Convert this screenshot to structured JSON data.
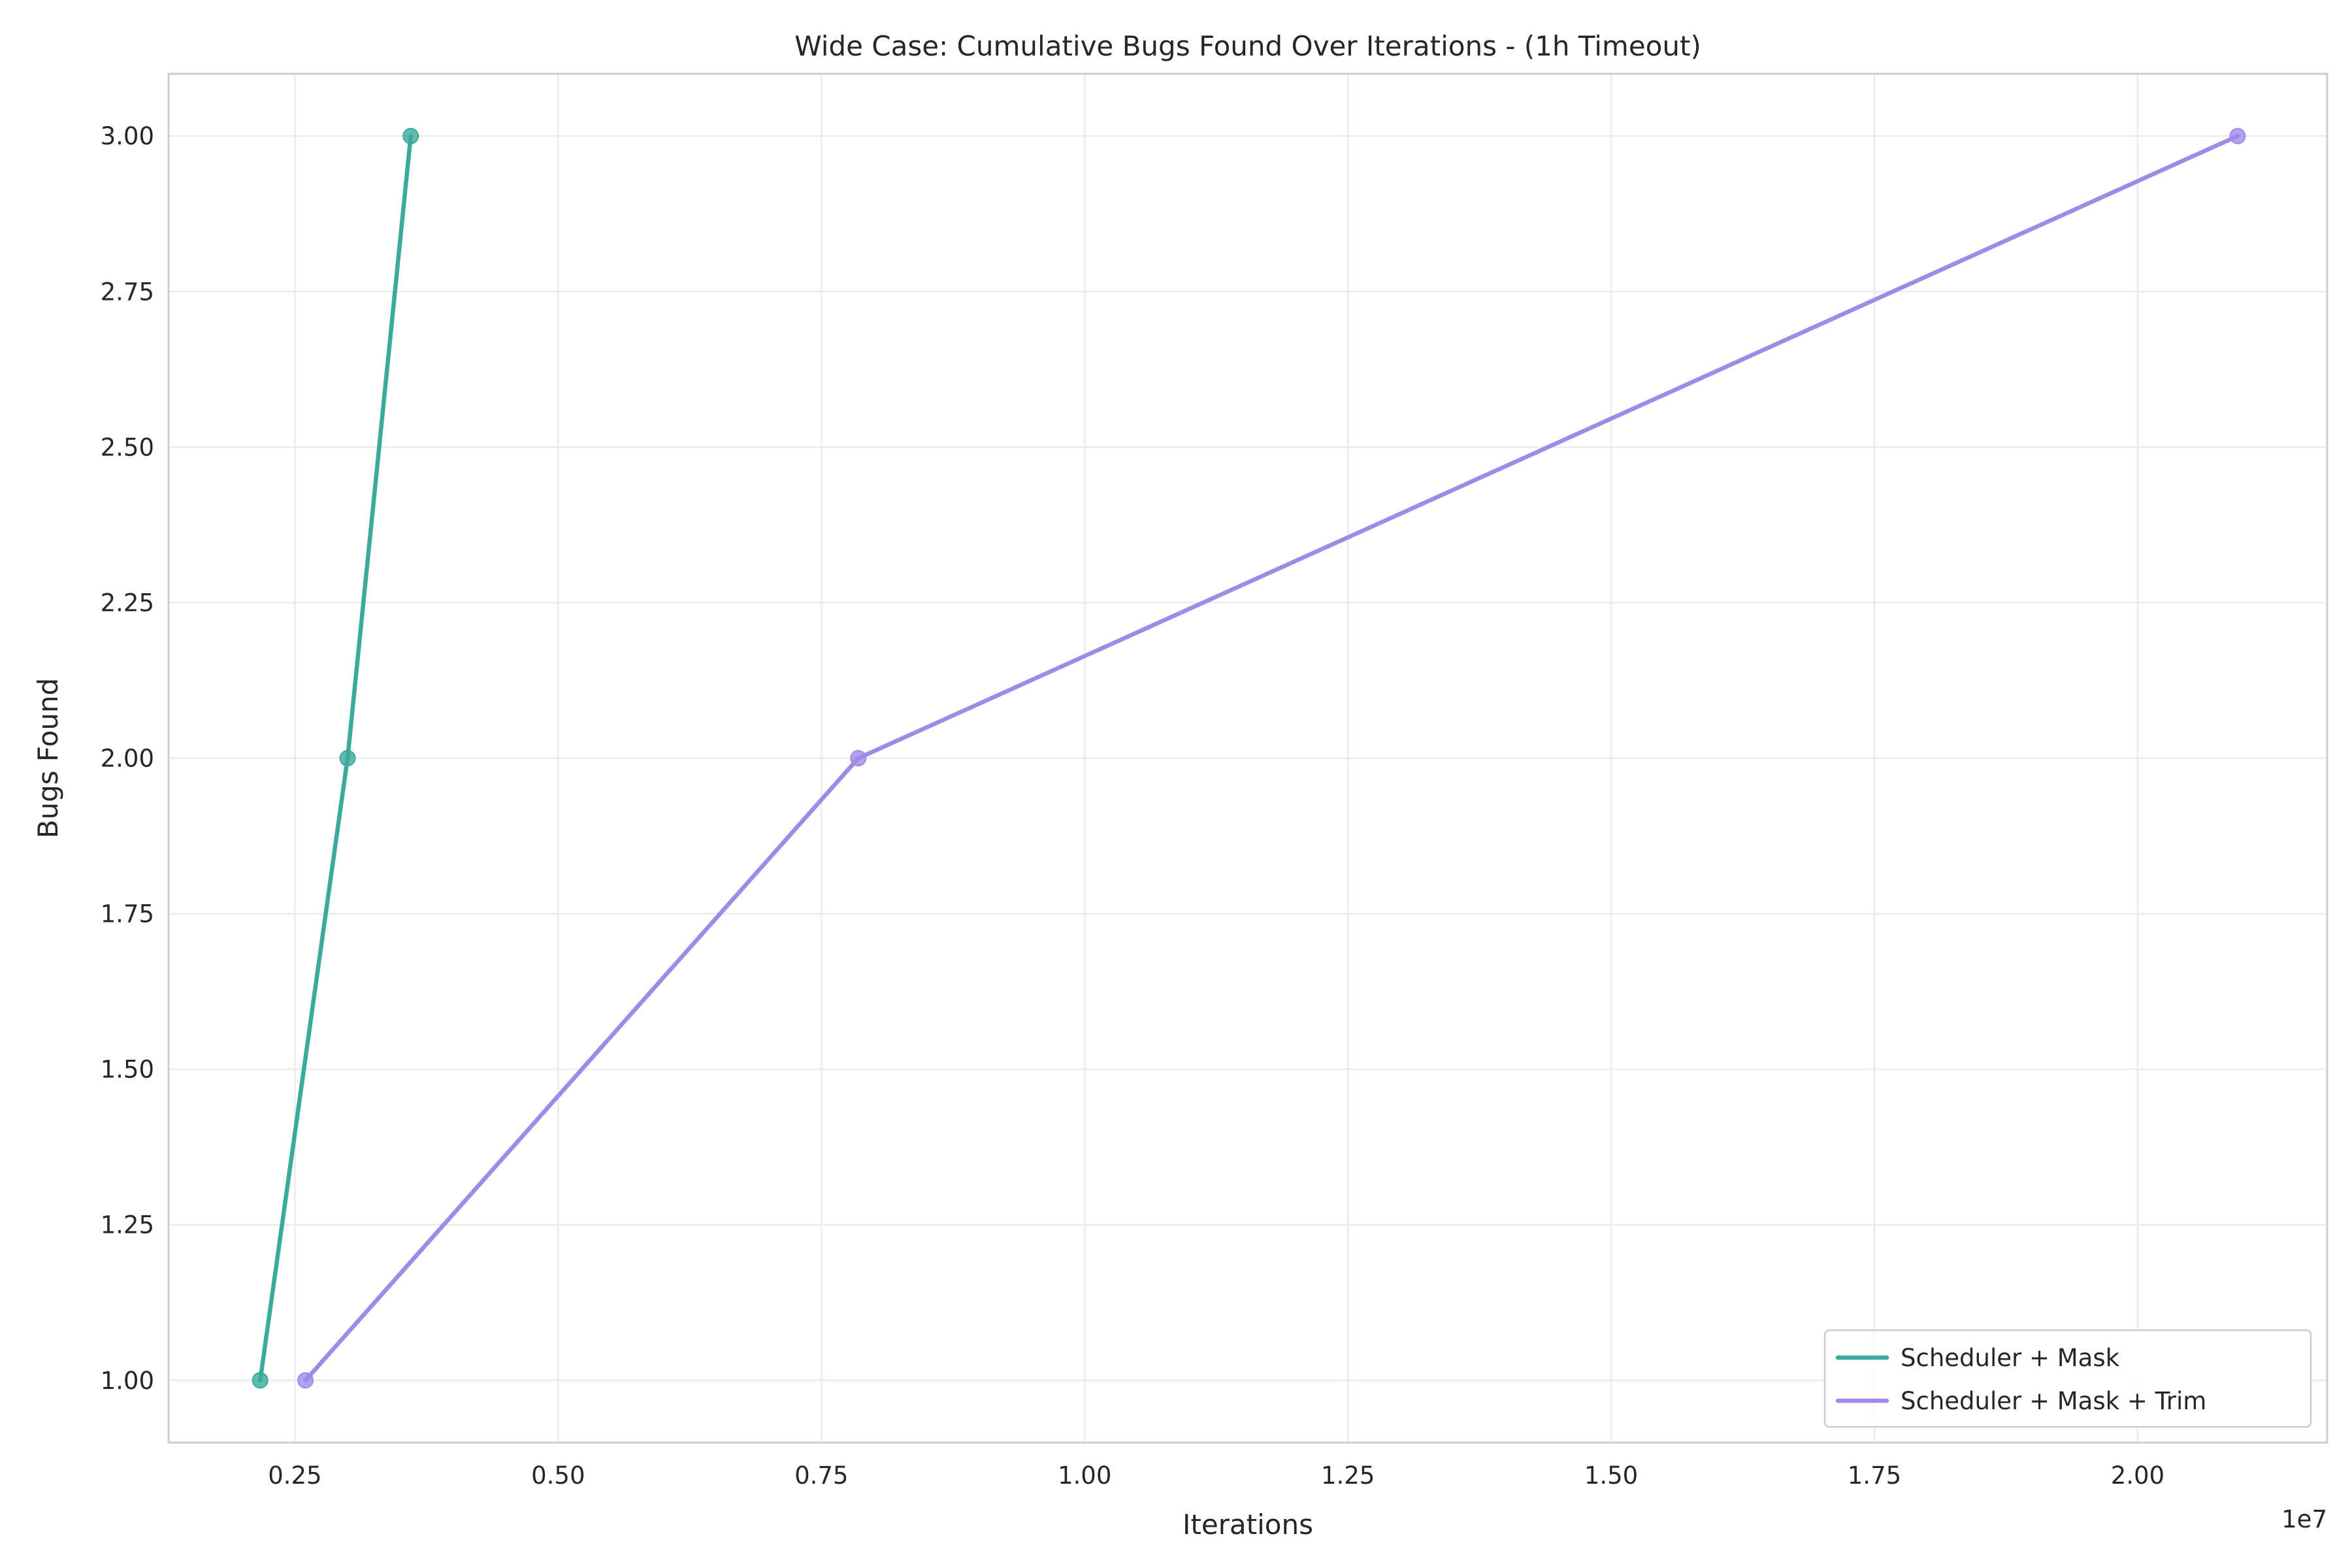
{
  "chart_data": {
    "type": "line",
    "title": "Wide Case: Cumulative Bugs Found Over Iterations - (1h Timeout)",
    "xlabel": "Iterations",
    "ylabel": "Bugs Found",
    "x_offset_text": "1e7",
    "xlim": [
      1300000,
      21800000
    ],
    "ylim": [
      0.9,
      3.1
    ],
    "x_ticks": [
      2500000,
      5000000,
      7500000,
      10000000,
      12500000,
      15000000,
      17500000,
      20000000
    ],
    "x_tick_labels": [
      "0.25",
      "0.50",
      "0.75",
      "1.00",
      "1.25",
      "1.50",
      "1.75",
      "2.00"
    ],
    "y_ticks": [
      1.0,
      1.25,
      1.5,
      1.75,
      2.0,
      2.25,
      2.5,
      2.75,
      3.0
    ],
    "y_tick_labels": [
      "1.00",
      "1.25",
      "1.50",
      "1.75",
      "2.00",
      "2.25",
      "2.50",
      "2.75",
      "3.00"
    ],
    "grid": true,
    "legend_position": "lower-right",
    "series": [
      {
        "name": "Scheduler + Mask",
        "color": "#3ba99c",
        "x": [
          2170000,
          3000000,
          3600000
        ],
        "y": [
          1,
          2,
          3
        ]
      },
      {
        "name": "Scheduler + Mask + Trim",
        "color": "#a08ae8",
        "x": [
          2600000,
          7850000,
          20950000
        ],
        "y": [
          1,
          2,
          3
        ]
      }
    ]
  }
}
